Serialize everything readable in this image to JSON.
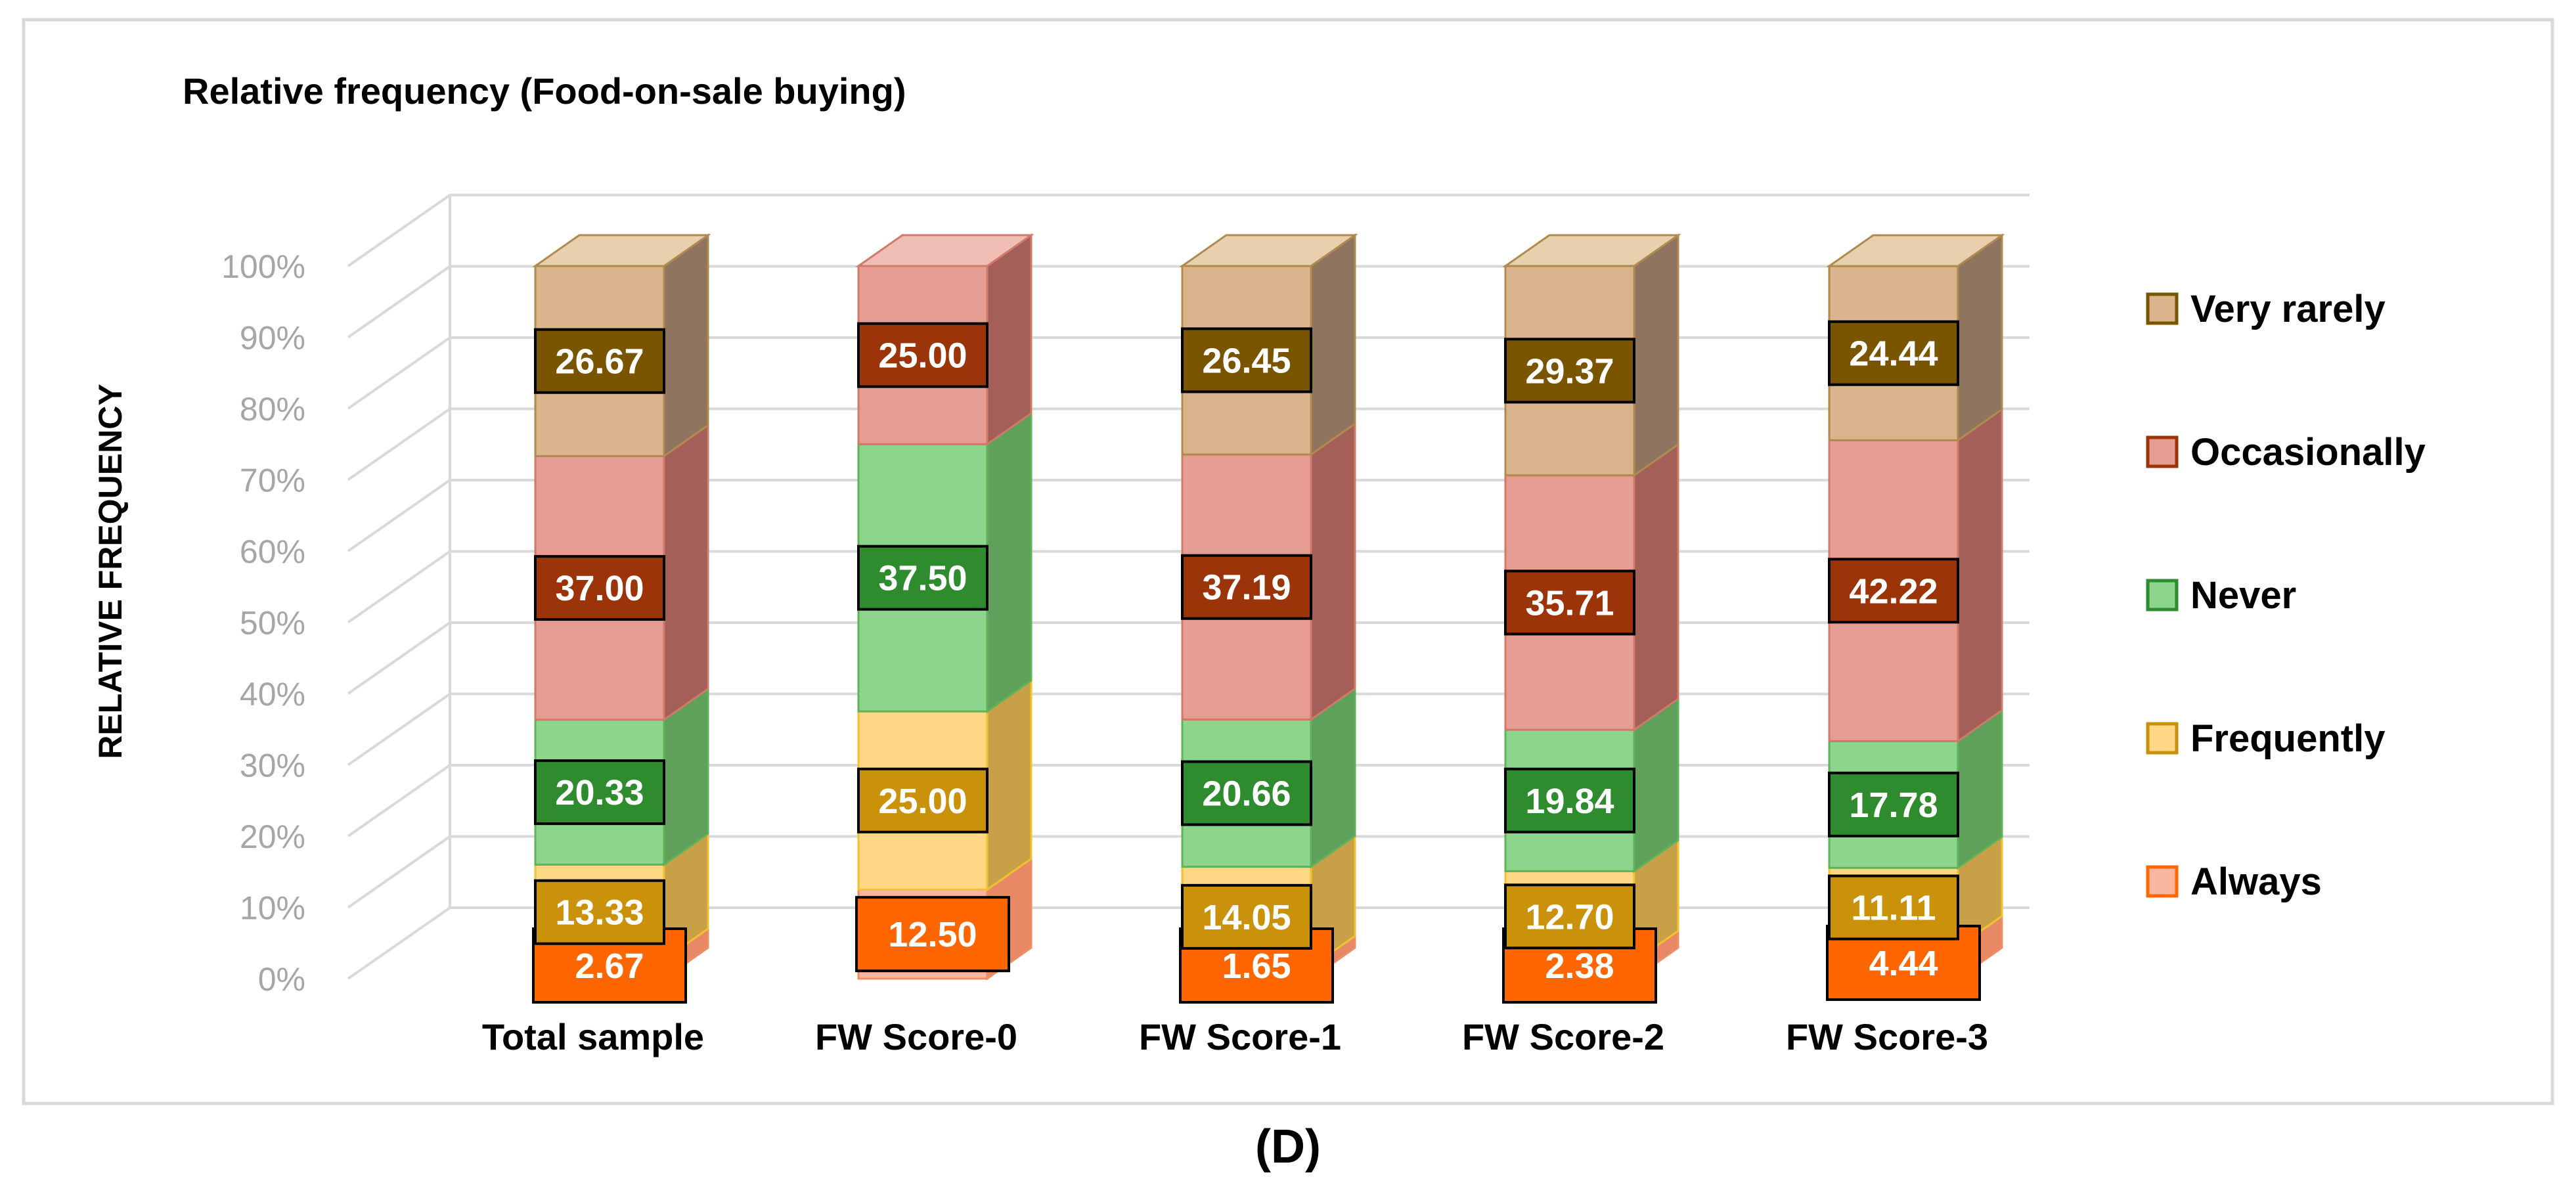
{
  "figure_label": "D",
  "chart_data": {
    "type": "bar",
    "stacked": true,
    "percent_stacked": true,
    "title": "Relative frequency (Food-on-sale buying)",
    "ylabel": "RELATIVE FREQUENCY",
    "xlabel": "",
    "ylim": [
      0,
      100
    ],
    "y_ticks": [
      "0%",
      "10%",
      "20%",
      "30%",
      "40%",
      "50%",
      "60%",
      "70%",
      "80%",
      "90%",
      "100%"
    ],
    "grid": true,
    "legend_position": "right",
    "categories": [
      "Total sample",
      "FW Score-0",
      "FW Score-1",
      "FW Score-2",
      "FW Score-3"
    ],
    "series": [
      {
        "name": "Always",
        "values": [
          2.67,
          12.5,
          1.65,
          2.38,
          4.44
        ],
        "labels": [
          "2.67",
          "12.50",
          "1.65",
          "2.38",
          "4.44"
        ],
        "colors": {
          "front": "#F9B79F",
          "side": "#E88965",
          "top": "#FCD2C0",
          "edge": "#F08D64",
          "label_bg": "#FF6600",
          "label_text": "#FFFFFF"
        }
      },
      {
        "name": "Frequently",
        "values": [
          13.33,
          25.0,
          14.05,
          12.7,
          11.11
        ],
        "labels": [
          "13.33",
          "25.00",
          "14.05",
          "12.70",
          "11.11"
        ],
        "colors": {
          "front": "#FFD785",
          "side": "#C7A047",
          "top": "#FFE6A8",
          "edge": "#F2C12E",
          "label_bg": "#C9920A",
          "label_text": "#FFFFFF"
        }
      },
      {
        "name": "Never",
        "values": [
          20.33,
          37.5,
          20.66,
          19.84,
          17.78
        ],
        "labels": [
          "20.33",
          "37.50",
          "20.66",
          "19.84",
          "17.78"
        ],
        "colors": {
          "front": "#8DD48C",
          "side": "#5FA15A",
          "top": "#B6E6B1",
          "edge": "#5FB35A",
          "label_bg": "#2E8B2E",
          "label_text": "#FFFFFF"
        }
      },
      {
        "name": "Occasionally",
        "values": [
          37.0,
          25.0,
          37.19,
          35.71,
          42.22
        ],
        "labels": [
          "37.00",
          "25.00",
          "37.19",
          "35.71",
          "42.22"
        ],
        "colors": {
          "front": "#E59C92",
          "side": "#A45F58",
          "top": "#F0BDB5",
          "edge": "#D07A6A",
          "label_bg": "#9B3509",
          "label_text": "#FFFFFF"
        }
      },
      {
        "name": "Very rarely",
        "values": [
          26.67,
          0,
          26.45,
          29.37,
          24.44
        ],
        "labels": [
          "26.67",
          "",
          "26.45",
          "29.37",
          "24.44"
        ],
        "colors": {
          "front": "#D9B48C",
          "side": "#8F7560",
          "top": "#E8CFAE",
          "edge": "#B08A4E",
          "label_bg": "#7A5500",
          "label_text": "#FFFFFF"
        }
      }
    ]
  }
}
